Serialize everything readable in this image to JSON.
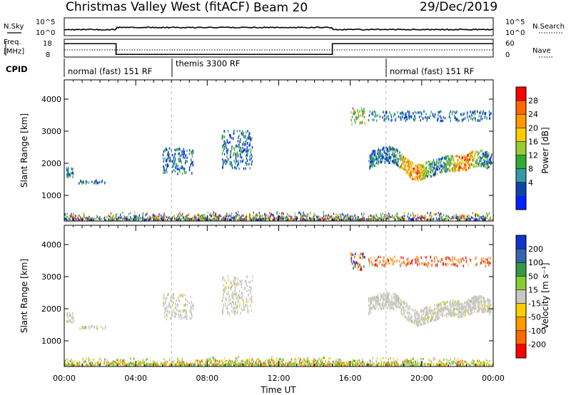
{
  "header": {
    "station": "Christmas Valley West (fitACF)",
    "beam": "Beam 20",
    "date": "29/Dec/2019"
  },
  "noise_panel": {
    "left_label": "N.Sky",
    "right_label": "N.Search",
    "left_ticks": [
      "10^5",
      "10^0"
    ],
    "right_ticks": [
      "10^5",
      "10^0"
    ]
  },
  "freq_panel": {
    "left_label_1": "Freq.",
    "left_label_2": "[MHz]",
    "right_label": "Nave",
    "left_ticks": [
      "18",
      "8"
    ],
    "right_ticks": [
      "60",
      "0"
    ],
    "freq_steps": [
      {
        "start_hour": 0,
        "end_hour": 2.9,
        "freq_mhz": 15.5
      },
      {
        "start_hour": 2.9,
        "end_hour": 15.0,
        "freq_mhz": 9.5
      },
      {
        "start_hour": 15.0,
        "end_hour": 24,
        "freq_mhz": 15.5
      }
    ]
  },
  "cpid": {
    "label": "CPID",
    "segments": [
      {
        "name": "normal (fast) 151 RF",
        "start_hour": 0
      },
      {
        "name": "themis 3300 RF",
        "start_hour": 6
      },
      {
        "name": "normal (fast) 151 RF",
        "start_hour": 18
      }
    ]
  },
  "chart_data": [
    {
      "type": "heatmap",
      "name": "Power",
      "ylabel": "Slant Range [km]",
      "yticks": [
        "4000",
        "3000",
        "2000",
        "1000"
      ],
      "ylim": [
        200,
        4600
      ],
      "xlim_hours": [
        0,
        24
      ],
      "colorbar_label": "Power [dB]",
      "colorbar_ticks": [
        "28",
        "24",
        "20",
        "16",
        "12",
        "8",
        "4"
      ],
      "colorbar_colors": [
        "#ff0000",
        "#ff6600",
        "#ff9900",
        "#ffcc00",
        "#99cc33",
        "#33aa33",
        "#3399aa",
        "#1144aa",
        "#0022ff"
      ],
      "echo_regions": [
        {
          "start_hour": 0.1,
          "end_hour": 0.5,
          "range_min_km": 1550,
          "range_max_km": 1850
        },
        {
          "start_hour": 0.8,
          "end_hour": 2.3,
          "range_min_km": 1350,
          "range_max_km": 1450
        },
        {
          "start_hour": 5.5,
          "end_hour": 7.2,
          "range_min_km": 1650,
          "range_max_km": 2450
        },
        {
          "start_hour": 8.8,
          "end_hour": 10.5,
          "range_min_km": 1800,
          "range_max_km": 3000
        },
        {
          "start_hour": 16.0,
          "end_hour": 16.8,
          "range_min_km": 3200,
          "range_max_km": 3700
        },
        {
          "start_hour": 17.0,
          "end_hour": 23.9,
          "range_min_km": 1500,
          "range_max_km": 2500
        },
        {
          "start_hour": 17.0,
          "end_hour": 23.9,
          "range_min_km": 3300,
          "range_max_km": 3600
        }
      ]
    },
    {
      "type": "heatmap",
      "name": "Velocity",
      "ylabel": "Slant Range [km]",
      "yticks": [
        "4000",
        "3000",
        "2000",
        "1000"
      ],
      "ylim": [
        200,
        4600
      ],
      "xlim_hours": [
        0,
        24
      ],
      "colorbar_label": "Velocity [m s⁻¹]",
      "colorbar_ticks": [
        "200",
        "100",
        "50",
        "15",
        "-15",
        "-50",
        "-100",
        "-200"
      ],
      "colorbar_colors": [
        "#1133cc",
        "#3366aa",
        "#339944",
        "#88cc33",
        "#c8c8c0",
        "#ffcc00",
        "#ff9900",
        "#ff6600",
        "#ff0000"
      ],
      "xlabel": "Time UT",
      "xticks": [
        "00:00",
        "04:00",
        "08:00",
        "12:00",
        "16:00",
        "20:00",
        "00:00"
      ]
    }
  ]
}
